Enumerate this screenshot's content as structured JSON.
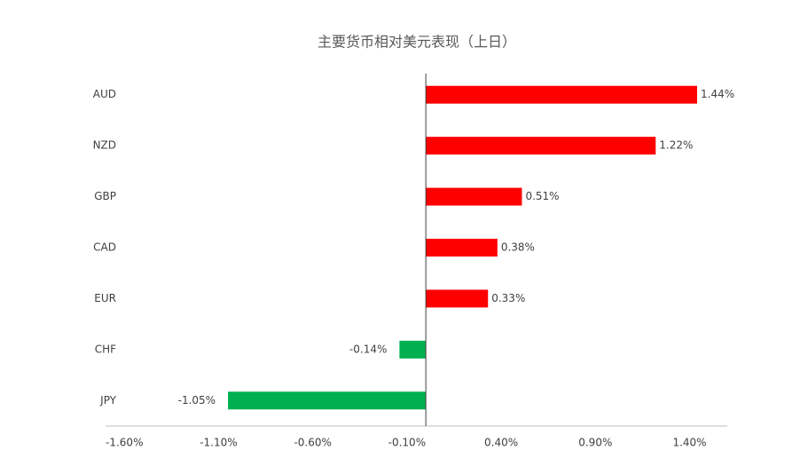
{
  "chart_data": {
    "type": "barh",
    "title": "主要货币相对美元表现（上日）",
    "categories": [
      "AUD",
      "NZD",
      "GBP",
      "CAD",
      "EUR",
      "CHF",
      "JPY"
    ],
    "values": [
      1.44,
      1.22,
      0.51,
      0.38,
      0.33,
      -0.14,
      -1.05
    ],
    "value_labels": [
      "1.44%",
      "1.22%",
      "0.51%",
      "0.38%",
      "0.33%",
      "-0.14%",
      "-1.05%"
    ],
    "colors": [
      "#ff0000",
      "#ff0000",
      "#ff0000",
      "#ff0000",
      "#ff0000",
      "#00b050",
      "#00b050"
    ],
    "xlim": [
      -1.7,
      1.6
    ],
    "xticks": [
      {
        "value": -1.6,
        "label": "-1.60%"
      },
      {
        "value": -1.1,
        "label": "-1.10%"
      },
      {
        "value": -0.6,
        "label": "-0.60%"
      },
      {
        "value": -0.1,
        "label": "-0.10%"
      },
      {
        "value": 0.4,
        "label": "0.40%"
      },
      {
        "value": 0.9,
        "label": "0.90%"
      },
      {
        "value": 1.4,
        "label": "1.40%"
      }
    ],
    "grid": false
  }
}
